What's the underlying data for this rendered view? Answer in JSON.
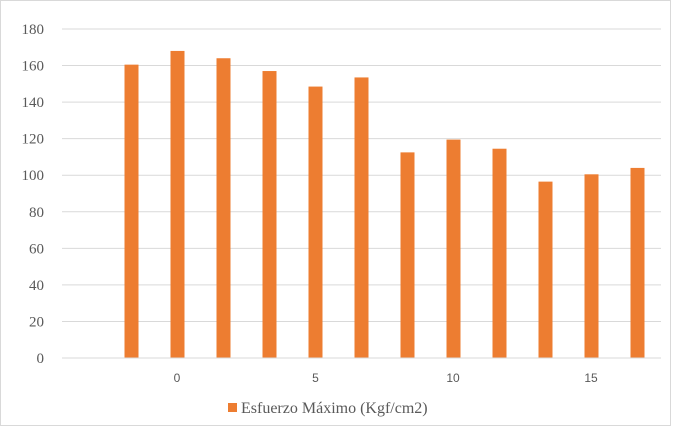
{
  "chart_data": {
    "type": "bar",
    "title": "",
    "xlabel": "",
    "ylabel": "",
    "x_ticks": [
      "0",
      "5",
      "10",
      "15"
    ],
    "ylim": [
      0,
      180
    ],
    "y_ticks": [
      0,
      20,
      40,
      60,
      80,
      100,
      120,
      140,
      160,
      180
    ],
    "grid": true,
    "legend_position": "bottom",
    "series": [
      {
        "name": "Esfuerzo Máximo (Kgf/cm2)",
        "color": "#ed7d31",
        "values": [
          160.5,
          168,
          164,
          157,
          148.5,
          153.5,
          112.5,
          119.5,
          114.5,
          96.5,
          100.5,
          104
        ]
      }
    ]
  }
}
